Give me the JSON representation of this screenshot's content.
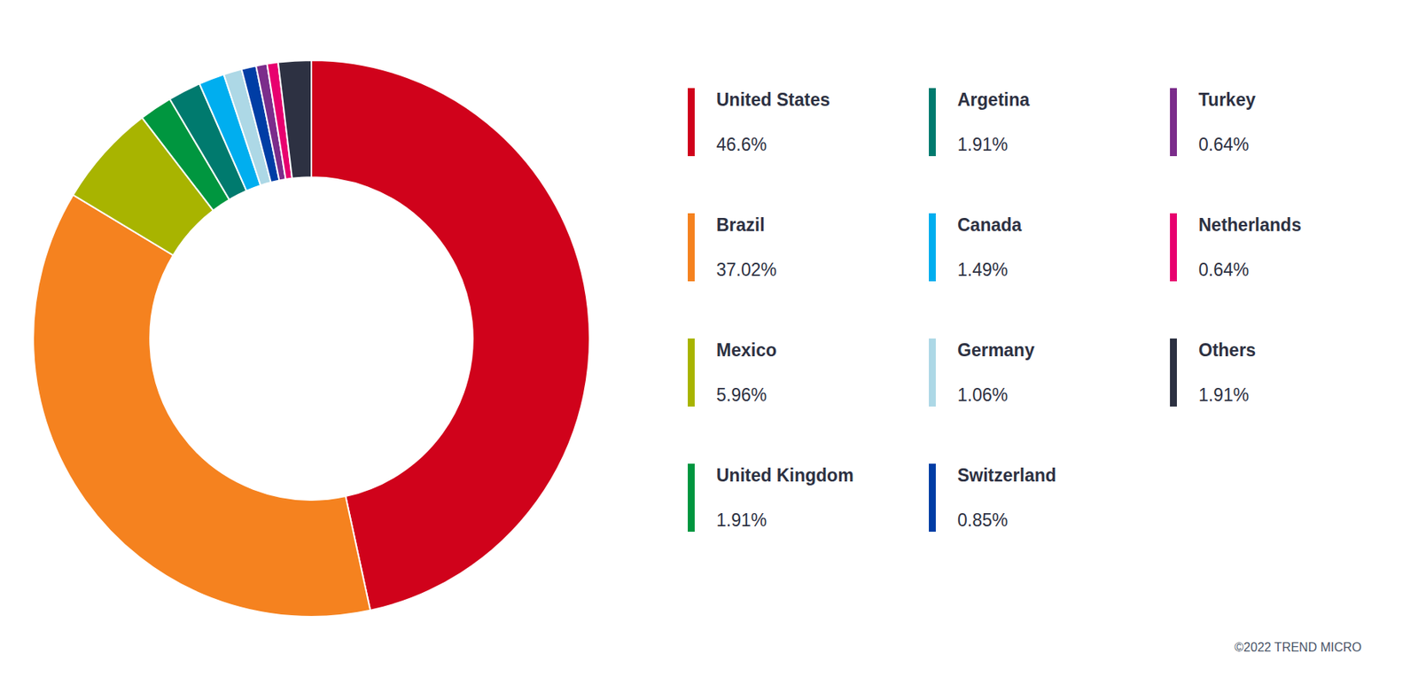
{
  "chart_data": {
    "type": "donut",
    "categories": [
      "United States",
      "Brazil",
      "Mexico",
      "United Kingdom",
      "Argetina",
      "Canada",
      "Germany",
      "Switzerland",
      "Turkey",
      "Netherlands",
      "Others"
    ],
    "values": [
      46.6,
      37.02,
      5.96,
      1.91,
      1.91,
      1.49,
      1.06,
      0.85,
      0.64,
      0.64,
      1.91
    ],
    "value_labels": [
      "46.6%",
      "37.02%",
      "5.96%",
      "1.91%",
      "1.91%",
      "1.49%",
      "1.06%",
      "0.85%",
      "0.64%",
      "0.64%",
      "1.91%"
    ],
    "colors": [
      "#D0021B",
      "#F5821F",
      "#A8B400",
      "#00963F",
      "#007A6E",
      "#00AEEF",
      "#ADD8E6",
      "#003DA5",
      "#7B2D8B",
      "#E8006F",
      "#2D3142"
    ],
    "legend": "right",
    "annotations": [
      "©2022 TREND MICRO"
    ]
  }
}
